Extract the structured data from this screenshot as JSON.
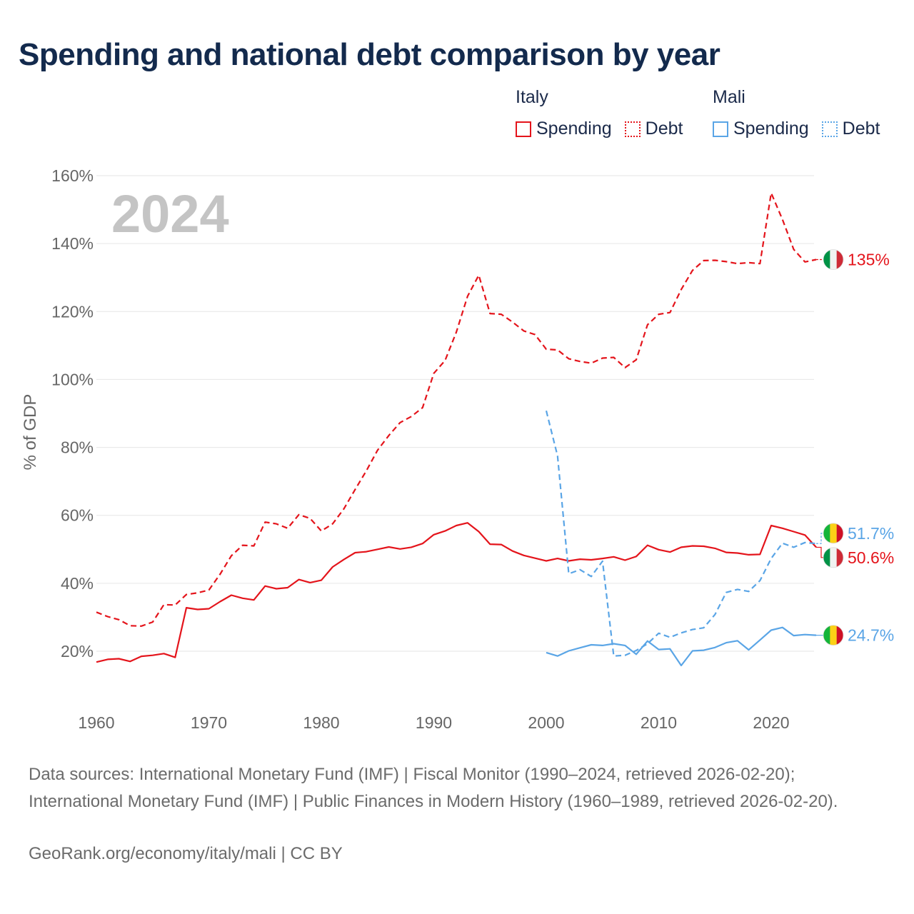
{
  "title": "Spending and national debt comparison by year",
  "legend": {
    "groups": [
      {
        "country": "Italy",
        "items": [
          {
            "label": "Spending",
            "style": "solid",
            "color": "#e4141b"
          },
          {
            "label": "Debt",
            "style": "dotted",
            "color": "#e4141b"
          }
        ]
      },
      {
        "country": "Mali",
        "items": [
          {
            "label": "Spending",
            "style": "solid",
            "color": "#5aa5e6"
          },
          {
            "label": "Debt",
            "style": "dotted",
            "color": "#5aa5e6"
          }
        ]
      }
    ]
  },
  "colors": {
    "italy": "#e4141b",
    "mali": "#5aa5e6",
    "grid": "#e6e6e6",
    "axis_text": "#666666",
    "year_watermark": "#c4c4c4"
  },
  "chart_data": {
    "type": "line",
    "year_display": "2024",
    "ylabel": "% of GDP",
    "xlabel": "",
    "xlim": [
      1960,
      2024
    ],
    "ylim": [
      10,
      160
    ],
    "x_ticks": [
      1960,
      1970,
      1980,
      1990,
      2000,
      2010,
      2020
    ],
    "y_ticks": [
      {
        "value": 20,
        "label": "20%"
      },
      {
        "value": 40,
        "label": "40%"
      },
      {
        "value": 60,
        "label": "60%"
      },
      {
        "value": 80,
        "label": "80%"
      },
      {
        "value": 100,
        "label": "100%"
      },
      {
        "value": 120,
        "label": "120%"
      },
      {
        "value": 140,
        "label": "140%"
      },
      {
        "value": 160,
        "label": "160%"
      }
    ],
    "series": [
      {
        "name": "Italy Debt",
        "country": "italy",
        "style": "dashed",
        "color": "#e4141b",
        "x": [
          1960,
          1961,
          1962,
          1963,
          1964,
          1965,
          1966,
          1967,
          1968,
          1969,
          1970,
          1971,
          1972,
          1973,
          1974,
          1975,
          1976,
          1977,
          1978,
          1979,
          1980,
          1981,
          1982,
          1983,
          1984,
          1985,
          1986,
          1987,
          1988,
          1989,
          1990,
          1991,
          1992,
          1993,
          1994,
          1995,
          1996,
          1997,
          1998,
          1999,
          2000,
          2001,
          2002,
          2003,
          2004,
          2005,
          2006,
          2007,
          2008,
          2009,
          2010,
          2011,
          2012,
          2013,
          2014,
          2015,
          2016,
          2017,
          2018,
          2019,
          2020,
          2021,
          2022,
          2023,
          2024
        ],
        "values": [
          31.5,
          30.2,
          29.3,
          27.5,
          27.4,
          28.6,
          33.7,
          33.6,
          36.7,
          37.2,
          38.0,
          42.7,
          48.1,
          51.2,
          51.0,
          58.0,
          57.5,
          56.2,
          60.2,
          59.1,
          55.4,
          57.5,
          61.9,
          67.6,
          73.1,
          79.2,
          83.5,
          87.3,
          89.1,
          91.7,
          101.8,
          105.6,
          113.9,
          124.5,
          130.7,
          119.4,
          119.2,
          116.9,
          114.3,
          113.2,
          108.9,
          108.7,
          106.1,
          105.3,
          104.8,
          106.3,
          106.5,
          103.5,
          105.8,
          116.1,
          119.2,
          119.7,
          126.5,
          132.1,
          135.0,
          135.1,
          134.7,
          134.1,
          134.4,
          134.1,
          154.9,
          147.1,
          138.3,
          134.6,
          135.3
        ],
        "end_label": "135%"
      },
      {
        "name": "Italy Spending",
        "country": "italy",
        "style": "solid",
        "color": "#e4141b",
        "x": [
          1960,
          1961,
          1962,
          1963,
          1964,
          1965,
          1966,
          1967,
          1968,
          1969,
          1970,
          1971,
          1972,
          1973,
          1974,
          1975,
          1976,
          1977,
          1978,
          1979,
          1980,
          1981,
          1982,
          1983,
          1984,
          1985,
          1986,
          1987,
          1988,
          1989,
          1990,
          1991,
          1992,
          1993,
          1994,
          1995,
          1996,
          1997,
          1998,
          1999,
          2000,
          2001,
          2002,
          2003,
          2004,
          2005,
          2006,
          2007,
          2008,
          2009,
          2010,
          2011,
          2012,
          2013,
          2014,
          2015,
          2016,
          2017,
          2018,
          2019,
          2020,
          2021,
          2022,
          2023,
          2024
        ],
        "values": [
          16.8,
          17.6,
          17.8,
          17.0,
          18.5,
          18.8,
          19.3,
          18.2,
          32.8,
          32.3,
          32.5,
          34.6,
          36.5,
          35.6,
          35.1,
          39.2,
          38.4,
          38.7,
          41.1,
          40.2,
          40.9,
          44.8,
          47.0,
          49.0,
          49.3,
          50.0,
          50.7,
          50.1,
          50.6,
          51.7,
          54.3,
          55.4,
          57.0,
          57.8,
          55.2,
          51.5,
          51.4,
          49.5,
          48.2,
          47.4,
          46.6,
          47.3,
          46.6,
          47.1,
          46.9,
          47.3,
          47.8,
          46.8,
          47.9,
          51.2,
          49.9,
          49.2,
          50.6,
          51.0,
          50.9,
          50.3,
          49.1,
          48.9,
          48.4,
          48.5,
          57.0,
          56.2,
          55.2,
          54.2,
          50.6
        ],
        "end_label": "50.6%"
      },
      {
        "name": "Mali Debt",
        "country": "mali",
        "style": "dashed",
        "color": "#5aa5e6",
        "x": [
          2000,
          2001,
          2002,
          2003,
          2004,
          2005,
          2006,
          2007,
          2008,
          2009,
          2010,
          2011,
          2012,
          2013,
          2014,
          2015,
          2016,
          2017,
          2018,
          2019,
          2020,
          2021,
          2022,
          2023,
          2024
        ],
        "values": [
          90.8,
          77.5,
          42.8,
          44.0,
          42.0,
          46.5,
          18.6,
          18.8,
          20.2,
          22.2,
          25.3,
          24.1,
          25.4,
          26.4,
          26.9,
          30.8,
          37.3,
          38.2,
          37.6,
          40.8,
          47.3,
          51.8,
          50.6,
          52.0,
          51.7
        ],
        "end_label": "51.7%"
      },
      {
        "name": "Mali Spending",
        "country": "mali",
        "style": "solid",
        "color": "#5aa5e6",
        "x": [
          2000,
          2001,
          2002,
          2003,
          2004,
          2005,
          2006,
          2007,
          2008,
          2009,
          2010,
          2011,
          2012,
          2013,
          2014,
          2015,
          2016,
          2017,
          2018,
          2019,
          2020,
          2021,
          2022,
          2023,
          2024
        ],
        "values": [
          19.6,
          18.6,
          20.1,
          21.0,
          21.9,
          21.7,
          22.2,
          21.7,
          19.1,
          23.0,
          20.5,
          20.7,
          15.8,
          20.1,
          20.3,
          21.1,
          22.5,
          23.1,
          20.4,
          23.3,
          26.2,
          27.0,
          24.6,
          24.9,
          24.7
        ],
        "end_label": "24.7%"
      }
    ]
  },
  "footer": {
    "sources": "Data sources: International Monetary Fund (IMF) | Fiscal Monitor (1990–2024, retrieved 2026-02-20); International Monetary Fund (IMF) | Public Finances in Modern History (1960–1989, retrieved 2026-02-20).",
    "credit": "GeoRank.org/economy/italy/mali | CC BY"
  }
}
